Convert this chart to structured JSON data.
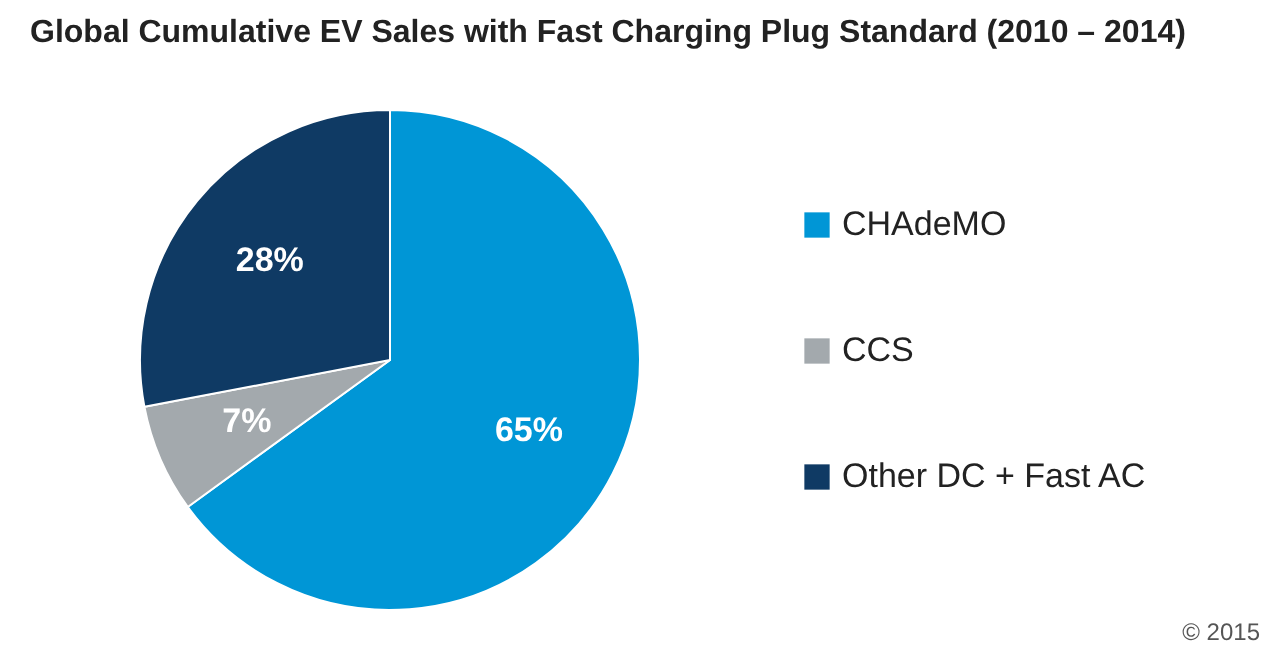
{
  "chart_data": {
    "type": "pie",
    "title": "Global Cumulative EV Sales with Fast Charging Plug Standard (2010 – 2014)",
    "categories": [
      "CHAdeMO",
      "CCS",
      "Other DC + Fast AC"
    ],
    "values": [
      65,
      7,
      28
    ],
    "colors": [
      "#0096d6",
      "#a3a9ad",
      "#0f3a64"
    ],
    "value_labels": [
      "65%",
      "7%",
      "28%"
    ],
    "legend": "right",
    "annotations": [
      "© 2015"
    ]
  }
}
